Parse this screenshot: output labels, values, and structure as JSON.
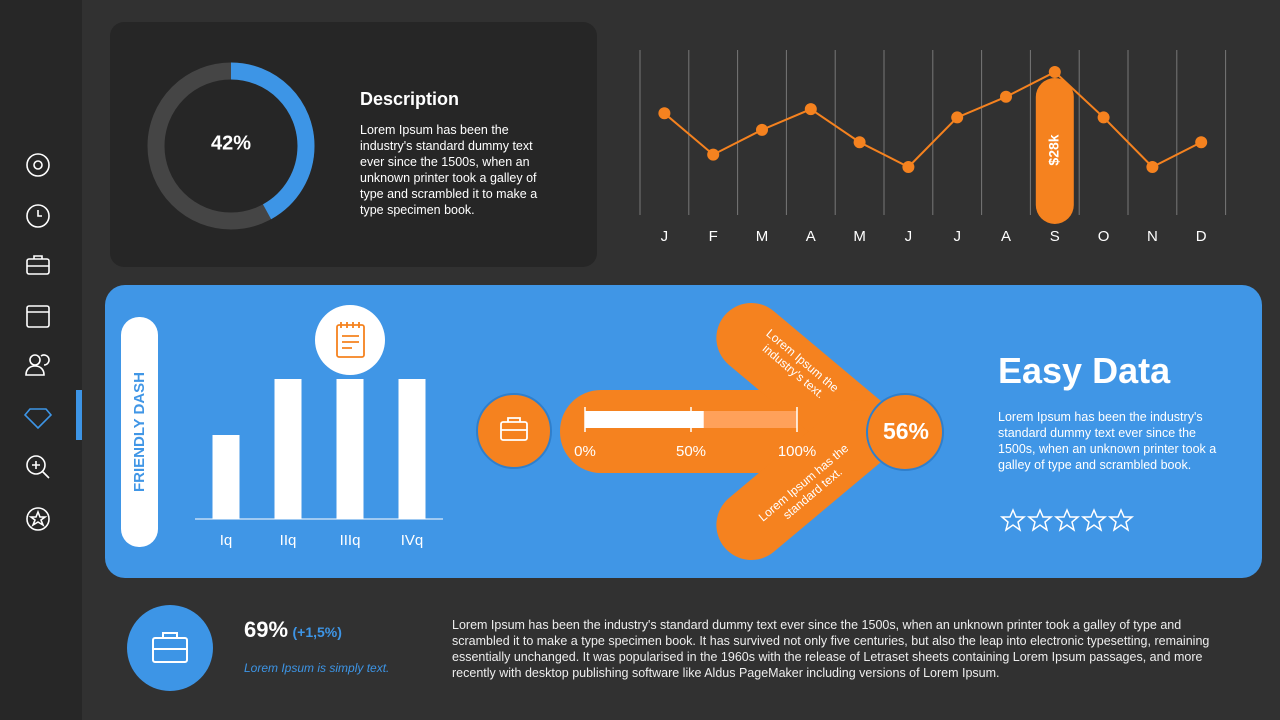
{
  "description": {
    "title": "Description",
    "text": "Lorem Ipsum has been the industry's standard dummy text ever since the 1500s, when an unknown printer took a galley of type and scrambled it to make a type specimen book."
  },
  "chart_data": [
    {
      "type": "donut",
      "values": [
        42
      ],
      "value_labels": [
        "42%"
      ],
      "color": "#3d95e6"
    },
    {
      "type": "line",
      "categories": [
        "J",
        "F",
        "M",
        "A",
        "M",
        "J",
        "J",
        "A",
        "S",
        "O",
        "N",
        "D"
      ],
      "values": [
        18,
        8,
        14,
        19,
        11,
        5,
        17,
        22,
        28,
        17,
        5,
        11
      ],
      "value_labels": [
        null,
        null,
        null,
        null,
        null,
        null,
        null,
        null,
        "$28k",
        null,
        null,
        null
      ],
      "color": "#f5821f"
    },
    {
      "type": "bar",
      "title": "FRIENDLY DASH",
      "categories": [
        "Iq",
        "IIq",
        "IIIq",
        "IVq"
      ],
      "values": [
        60,
        100,
        100,
        100
      ],
      "color": "#ffffff"
    },
    {
      "type": "progress",
      "values": [
        56
      ],
      "value_labels": [
        "56%"
      ],
      "xlim": [
        0,
        100
      ],
      "xticks": [
        {
          "value": 0,
          "label": "0%"
        },
        {
          "value": 50,
          "label": "50%"
        },
        {
          "value": 100,
          "label": "100%"
        }
      ]
    }
  ],
  "arrow_texts": [
    "Lorem Ipsum the industry's text.",
    "Lorem Ipsum has the standard text."
  ],
  "easy_data": {
    "title": "Easy Data",
    "text": "Lorem Ipsum has been the industry's standard dummy text ever since the 1500s, when an unknown printer took a galley of type and scrambled book."
  },
  "kpi": {
    "value": "69%",
    "change": "(+1,5%)",
    "caption": "Lorem Ipsum is simply text.",
    "text": "Lorem Ipsum has been the industry's standard dummy text ever since the 1500s, when an unknown printer took a galley of type and scrambled it to make a type specimen book. It has survived not only five centuries, but also the leap into electronic typesetting, remaining essentially unchanged. It was popularised in the 1960s with the release of Letraset sheets containing Lorem Ipsum passages, and more recently with desktop publishing software like Aldus PageMaker including versions of Lorem Ipsum."
  }
}
